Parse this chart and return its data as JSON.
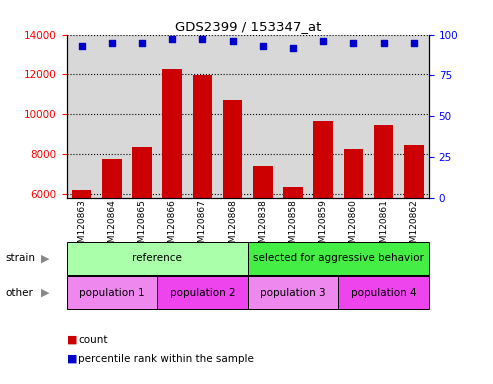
{
  "title": "GDS2399 / 153347_at",
  "samples": [
    "GSM120863",
    "GSM120864",
    "GSM120865",
    "GSM120866",
    "GSM120867",
    "GSM120868",
    "GSM120838",
    "GSM120858",
    "GSM120859",
    "GSM120860",
    "GSM120861",
    "GSM120862"
  ],
  "counts": [
    6200,
    7750,
    8350,
    12250,
    11950,
    10700,
    7400,
    6350,
    9650,
    8250,
    9450,
    8450
  ],
  "percentile_ranks": [
    93,
    95,
    95,
    97,
    97,
    96,
    93,
    92,
    96,
    95,
    95,
    95
  ],
  "ylim_left": [
    5800,
    14000
  ],
  "ylim_right": [
    0,
    100
  ],
  "yticks_left": [
    6000,
    8000,
    10000,
    12000,
    14000
  ],
  "yticks_right": [
    0,
    25,
    50,
    75,
    100
  ],
  "bar_color": "#cc0000",
  "dot_color": "#0000cc",
  "strain_groups": [
    {
      "label": "reference",
      "start": 0,
      "end": 6,
      "color": "#aaffaa"
    },
    {
      "label": "selected for aggressive behavior",
      "start": 6,
      "end": 12,
      "color": "#44ee44"
    }
  ],
  "other_groups": [
    {
      "label": "population 1",
      "start": 0,
      "end": 3,
      "color": "#ee88ee"
    },
    {
      "label": "population 2",
      "start": 3,
      "end": 6,
      "color": "#ee44ee"
    },
    {
      "label": "population 3",
      "start": 6,
      "end": 9,
      "color": "#ee88ee"
    },
    {
      "label": "population 4",
      "start": 9,
      "end": 12,
      "color": "#ee44ee"
    }
  ],
  "strain_label": "strain",
  "other_label": "other",
  "legend_count_label": "count",
  "legend_pct_label": "percentile rank within the sample",
  "ax_bg_color": "#d8d8d8",
  "grid_color": "#000000"
}
